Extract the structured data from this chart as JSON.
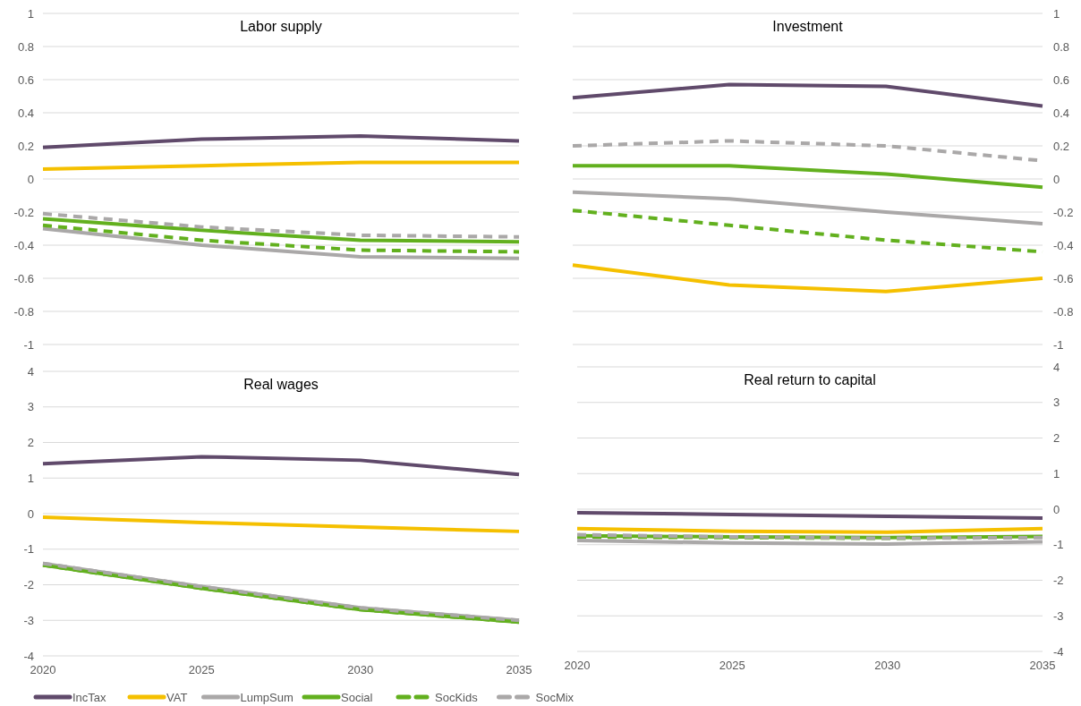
{
  "chart_data": [
    {
      "type": "line",
      "title": "Labor supply",
      "x": [
        2020,
        2025,
        2030,
        2035
      ],
      "xlim": [
        2020,
        2035
      ],
      "ylim": [
        -1,
        1
      ],
      "yticks": [
        -1,
        -0.8,
        -0.6,
        -0.4,
        -0.2,
        0,
        0.2,
        0.4,
        0.6,
        0.8,
        1
      ],
      "grid": "y",
      "tick_labels": "y",
      "series": [
        {
          "color": "#604a6b",
          "values": [
            0.19,
            0.24,
            0.26,
            0.23
          ]
        },
        {
          "color": "#f5c000",
          "values": [
            0.06,
            0.08,
            0.1,
            0.1
          ]
        },
        {
          "color": "#aaa8a8",
          "values": [
            -0.3,
            -0.4,
            -0.47,
            -0.48
          ]
        },
        {
          "color": "#62b01e",
          "values": [
            -0.24,
            -0.31,
            -0.37,
            -0.38
          ]
        },
        {
          "color": "#62b01e",
          "line_style": "dashed",
          "values": [
            -0.28,
            -0.37,
            -0.43,
            -0.44
          ]
        },
        {
          "color": "#aaa8a8",
          "line_style": "dashed",
          "values": [
            -0.21,
            -0.29,
            -0.34,
            -0.35
          ]
        }
      ]
    },
    {
      "type": "line",
      "title": "Investment",
      "x": [
        2020,
        2025,
        2030,
        2035
      ],
      "xlim": [
        2020,
        2035
      ],
      "ylim": [
        -1,
        1
      ],
      "yticks": [
        -1,
        -0.8,
        -0.6,
        -0.4,
        -0.2,
        0,
        0.2,
        0.4,
        0.6,
        0.8,
        1
      ],
      "grid": "y",
      "tick_labels": "y",
      "series": [
        {
          "color": "#604a6b",
          "values": [
            0.49,
            0.57,
            0.56,
            0.44
          ]
        },
        {
          "color": "#f5c000",
          "values": [
            -0.52,
            -0.64,
            -0.68,
            -0.6
          ]
        },
        {
          "color": "#aaa8a8",
          "values": [
            -0.08,
            -0.12,
            -0.2,
            -0.27
          ]
        },
        {
          "color": "#62b01e",
          "values": [
            0.08,
            0.08,
            0.03,
            -0.05
          ]
        },
        {
          "color": "#62b01e",
          "line_style": "dashed",
          "values": [
            -0.19,
            -0.28,
            -0.37,
            -0.44
          ]
        },
        {
          "color": "#aaa8a8",
          "line_style": "dashed",
          "values": [
            0.2,
            0.23,
            0.2,
            0.11
          ]
        }
      ]
    },
    {
      "type": "line",
      "title": "Real wages",
      "x": [
        2020,
        2025,
        2030,
        2035
      ],
      "xlim": [
        2020,
        2035
      ],
      "xticks": [
        2020,
        2025,
        2030,
        2035
      ],
      "ylim": [
        -4,
        4
      ],
      "yticks": [
        -4,
        -3,
        -2,
        -1,
        0,
        1,
        2,
        3,
        4
      ],
      "grid": "y",
      "legend": "bottom",
      "series": [
        {
          "name": "IncTax",
          "color": "#604a6b",
          "values": [
            1.4,
            1.6,
            1.5,
            1.1
          ]
        },
        {
          "name": "VAT",
          "color": "#f5c000",
          "values": [
            -0.1,
            -0.25,
            -0.38,
            -0.5
          ]
        },
        {
          "name": "LumpSum",
          "color": "#aaa8a8",
          "values": [
            -1.4,
            -2.05,
            -2.65,
            -3.0
          ]
        },
        {
          "name": "Social",
          "color": "#62b01e",
          "values": [
            -1.45,
            -2.1,
            -2.7,
            -3.05
          ]
        },
        {
          "name": "SocKids",
          "color": "#62b01e",
          "line_style": "dashed",
          "values": [
            -1.45,
            -2.1,
            -2.7,
            -3.05
          ]
        },
        {
          "name": "SocMix",
          "color": "#aaa8a8",
          "line_style": "dashed",
          "values": [
            -1.4,
            -2.05,
            -2.65,
            -3.0
          ]
        }
      ]
    },
    {
      "type": "line",
      "title": "Real return  to capital",
      "x": [
        2020,
        2025,
        2030,
        2035
      ],
      "xlim": [
        2020,
        2035
      ],
      "xticks": [
        2020,
        2025,
        2030,
        2035
      ],
      "ylim": [
        -4,
        4
      ],
      "yticks": [
        -4,
        -3,
        -2,
        -1,
        0,
        1,
        2,
        3,
        4
      ],
      "grid": "y",
      "series": [
        {
          "color": "#604a6b",
          "values": [
            -0.1,
            -0.15,
            -0.2,
            -0.25
          ]
        },
        {
          "color": "#f5c000",
          "values": [
            -0.55,
            -0.62,
            -0.65,
            -0.55
          ]
        },
        {
          "color": "#aaa8a8",
          "values": [
            -0.88,
            -0.95,
            -0.98,
            -0.92
          ]
        },
        {
          "color": "#62b01e",
          "values": [
            -0.75,
            -0.78,
            -0.8,
            -0.77
          ]
        },
        {
          "color": "#62b01e",
          "line_style": "dashed",
          "values": [
            -0.78,
            -0.8,
            -0.82,
            -0.78
          ]
        },
        {
          "color": "#aaa8a8",
          "line_style": "dashed",
          "values": [
            -0.72,
            -0.78,
            -0.82,
            -0.8
          ]
        }
      ]
    }
  ]
}
